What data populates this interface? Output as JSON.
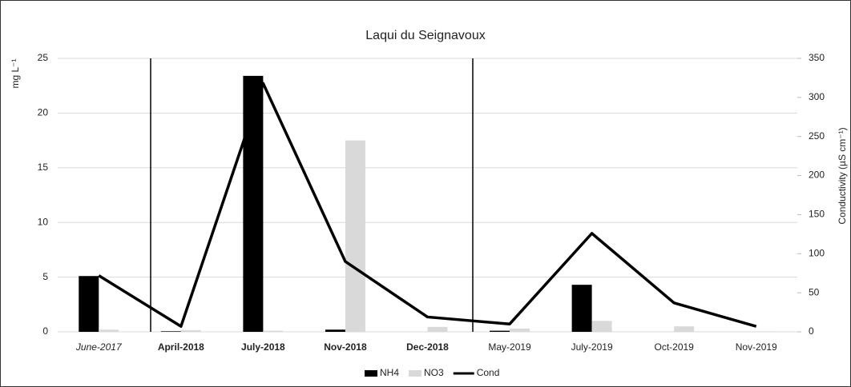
{
  "chart_data": {
    "type": "bar-line",
    "title": "Laqui du Seignavoux",
    "y_label": "mg L⁻¹",
    "y2_label": "Conductivity (µS cm⁻¹)",
    "categories": [
      "June-2017",
      "April-2018",
      "July-2018",
      "Nov-2018",
      "Dec-2018",
      "May-2019",
      "July-2019",
      "Oct-2019",
      "Nov-2019"
    ],
    "category_styles": [
      "italic",
      "bold",
      "bold",
      "bold",
      "bold",
      "normal",
      "normal",
      "normal",
      "normal"
    ],
    "series": [
      {
        "name": "NH4",
        "type": "bar",
        "color": "#000000",
        "values": [
          5.1,
          0.05,
          23.4,
          0.2,
          0,
          0.1,
          4.3,
          0,
          0
        ]
      },
      {
        "name": "NO3",
        "type": "bar",
        "color": "#d9d9d9",
        "values": [
          0.2,
          0.15,
          0.1,
          17.5,
          0.45,
          0.3,
          1.0,
          0.5,
          0.05
        ]
      },
      {
        "name": "Cond",
        "type": "line",
        "axis": "y2",
        "color": "#000000",
        "values": [
          72,
          7,
          318,
          90,
          19,
          10,
          126,
          37,
          7
        ]
      }
    ],
    "ylim": [
      0,
      25
    ],
    "yticks": [
      0,
      5,
      10,
      15,
      20,
      25
    ],
    "y2lim": [
      0,
      350
    ],
    "y2ticks": [
      0,
      50,
      100,
      150,
      200,
      250,
      300,
      350
    ],
    "grid": true,
    "legend": "bottom"
  }
}
